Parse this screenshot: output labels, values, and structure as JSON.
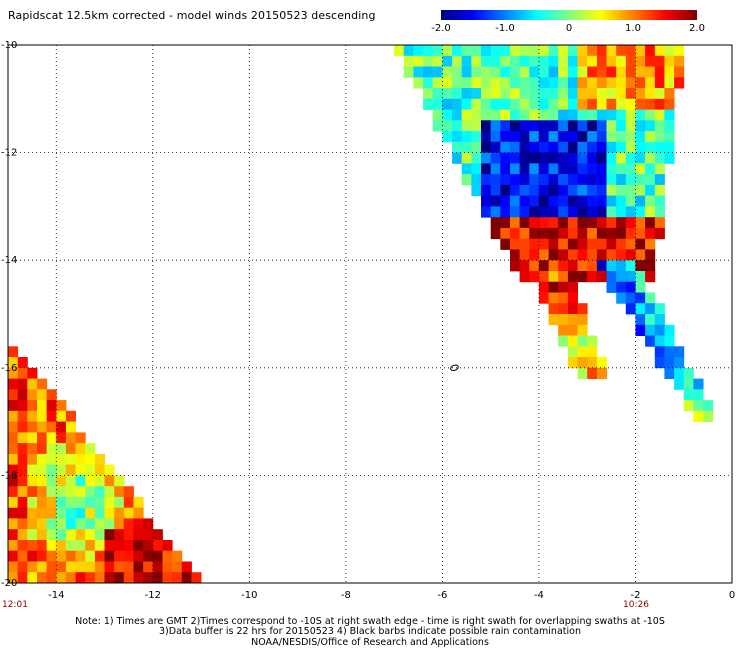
{
  "title": "Rapidscat 12.5km corrected - model winds 20150523 descending",
  "colorbar": {
    "tick_labels": [
      "-2.0",
      "-1.0",
      "0",
      "1.0",
      "2.0"
    ],
    "min": -2.0,
    "max": 2.0,
    "colors": [
      "#00007f",
      "#0000ff",
      "#007fff",
      "#00ffff",
      "#7fff7f",
      "#ffff00",
      "#ff7f00",
      "#ff0000",
      "#7f0000"
    ]
  },
  "time_labels": {
    "left": "12:01",
    "right": "10:26"
  },
  "notes": {
    "line1": "Note: 1) Times are GMT 2)Times correspond to -10S at right swath edge - time is right swath for overlapping swaths at -10S",
    "line2": "3)Data buffer is 22 hrs for 20150523 4) Black barbs indicate possible rain contamination",
    "line3": "NOAA/NESDIS/Office of Research and Applications"
  },
  "chart_data": {
    "type": "heatmap",
    "title": "Rapidscat 12.5km corrected - model winds 20150523 descending",
    "xlabel": "",
    "ylabel": "",
    "xlim": [
      -15,
      0
    ],
    "ylim": [
      -20,
      -10
    ],
    "x_ticks": [
      -14,
      -12,
      -10,
      -8,
      -6,
      -4,
      -2,
      0
    ],
    "x_tick_labels": [
      "-14",
      "-12",
      "-10",
      "-8",
      "-6",
      "-4",
      "-2",
      "0"
    ],
    "y_ticks": [
      -10,
      -12,
      -14,
      -16,
      -18,
      -20
    ],
    "y_tick_labels": [
      "-10",
      "-12",
      "-14",
      "-16",
      "-18",
      "-20"
    ],
    "grid": true,
    "value_range": [
      -2.0,
      2.0
    ],
    "cell_size_deg": 0.2,
    "regions": [
      {
        "name": "right swath upper",
        "x": [
          -7.0,
          -1.4
        ],
        "y": [
          -14.0,
          -10.0
        ],
        "mean_value": -0.3
      },
      {
        "name": "right swath upper red band",
        "x": [
          -4.8,
          -2.0
        ],
        "y": [
          -14.4,
          -13.2
        ],
        "mean_value": 1.5
      },
      {
        "name": "right swath lower inner strip",
        "x": [
          -3.6,
          -2.4
        ],
        "y": [
          -16.0,
          -14.4
        ],
        "mean_value": 0.8
      },
      {
        "name": "right swath lower outer strip",
        "x": [
          -2.8,
          -0.4
        ],
        "y": [
          -17.0,
          -14.2
        ],
        "mean_value": -0.8
      },
      {
        "name": "left swath",
        "x": [
          -15.0,
          -11.0
        ],
        "y": [
          -20.0,
          -15.6
        ],
        "mean_value": 0.6
      }
    ],
    "contours": [
      {
        "x": -5.75,
        "y": -16.0
      }
    ]
  }
}
